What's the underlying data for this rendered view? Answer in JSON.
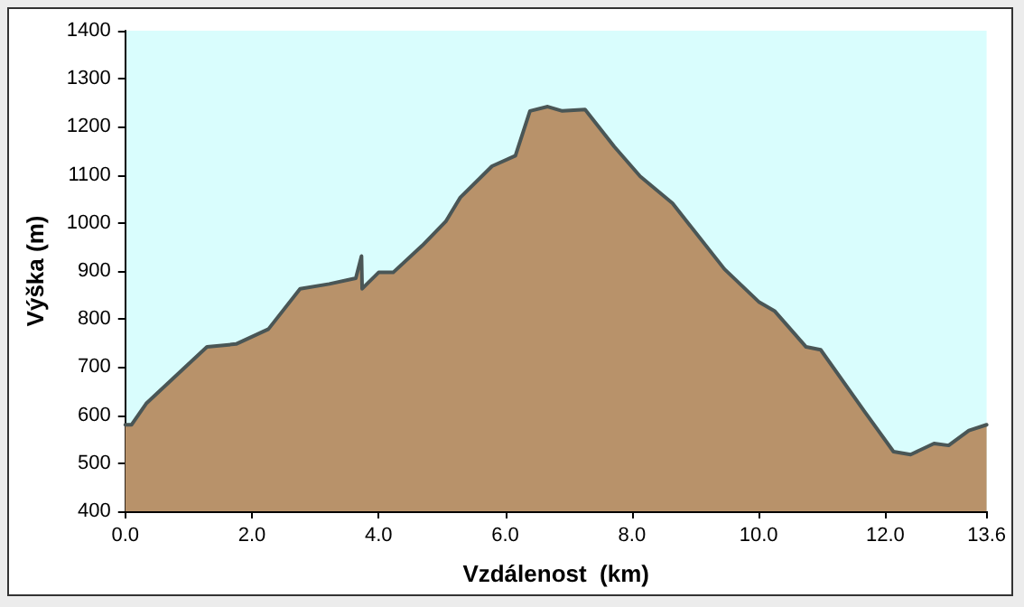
{
  "chart_data": {
    "type": "area",
    "xlabel": "Vzdálenost  (km)",
    "ylabel": "Výška (m)",
    "color": "#b8926a",
    "x": [
      0,
      0.1,
      0.33,
      0.93,
      1.29,
      1.75,
      2.26,
      2.76,
      3.22,
      3.64,
      3.73,
      3.74,
      4.0,
      4.23,
      4.69,
      5.06,
      5.29,
      5.79,
      6.16,
      6.39,
      6.67,
      6.9,
      7.26,
      7.72,
      8.13,
      8.64,
      9.46,
      10.01,
      10.25,
      10.75,
      10.98,
      11.67,
      12.13,
      12.4,
      12.77,
      13.0,
      13.32,
      13.6
    ],
    "values": [
      580,
      580,
      624,
      698,
      742,
      748,
      779,
      863,
      873,
      885,
      931,
      863,
      897,
      897,
      953,
      1003,
      1053,
      1118,
      1140,
      1233,
      1242,
      1233,
      1236,
      1159,
      1097,
      1041,
      904,
      835,
      817,
      742,
      736,
      608,
      524,
      518,
      541,
      537,
      568,
      580
    ],
    "xlim": [
      0,
      13.6
    ],
    "ylim": [
      400,
      1400
    ],
    "xticks": [
      {
        "value": 0,
        "label": "0.0"
      },
      {
        "value": 2,
        "label": "2.0"
      },
      {
        "value": 4,
        "label": "4.0"
      },
      {
        "value": 6,
        "label": "6.0"
      },
      {
        "value": 8,
        "label": "8.0"
      },
      {
        "value": 10,
        "label": "10.0"
      },
      {
        "value": 12,
        "label": "12.0"
      },
      {
        "value": 13.6,
        "label": "13.6"
      }
    ],
    "yticks": [
      400,
      500,
      600,
      700,
      800,
      900,
      1000,
      1100,
      1200,
      1300,
      1400
    ],
    "grid": false,
    "marker": "none",
    "line_style": "solid"
  }
}
